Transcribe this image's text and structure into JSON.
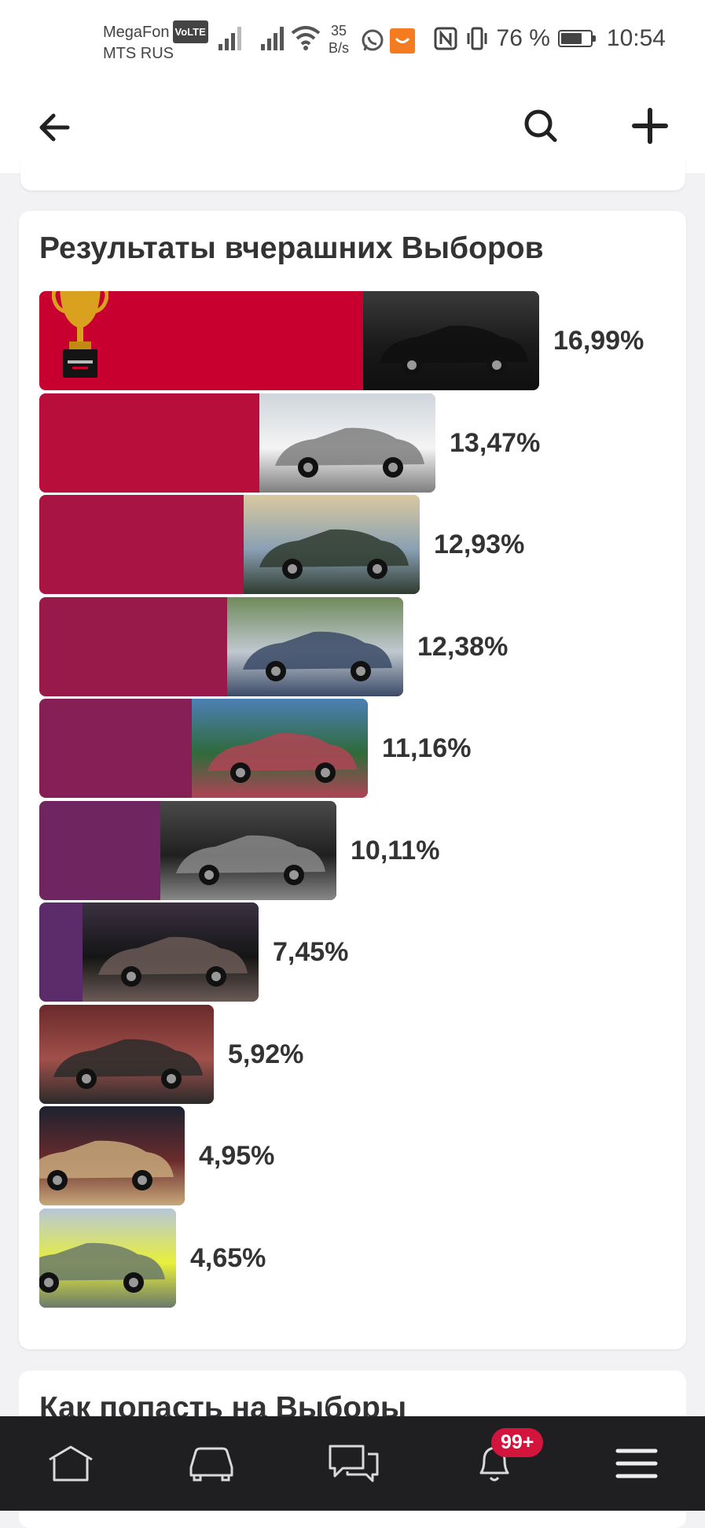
{
  "status_bar": {
    "carrier_1": "MegaFon",
    "volte": "VoLTE",
    "carrier_2": "MTS RUS",
    "net_speed_value": "35",
    "net_speed_unit": "B/s",
    "battery_percent": "76 %",
    "battery_level": 0.76,
    "time": "10:54"
  },
  "app_bar": {
    "back_icon": "arrow-left-icon",
    "search_icon": "search-icon",
    "add_icon": "plus-icon"
  },
  "results_card": {
    "title": "Результаты вчерашних Выборов",
    "chart_data": {
      "type": "bar",
      "orientation": "horizontal",
      "categories": [
        "",
        "",
        "",
        "",
        "",
        "",
        "",
        "",
        "",
        ""
      ],
      "values": [
        16.99,
        13.47,
        12.93,
        12.38,
        11.16,
        10.11,
        7.45,
        5.92,
        4.95,
        4.65
      ],
      "value_labels": [
        "16,99%",
        "13,47%",
        "12,93%",
        "12,38%",
        "11,16%",
        "10,11%",
        "7,45%",
        "5,92%",
        "4,95%",
        "4,65%"
      ],
      "bar_colors": [
        "#c8002f",
        "#b80e3c",
        "#a81443",
        "#981a4b",
        "#861f55",
        "#6f2560",
        "#5b2b6a",
        "#453470",
        "#333f86",
        "#224b94"
      ],
      "title": "Результаты вчерашних Выборов",
      "xlabel": "",
      "ylabel": "",
      "legend": "none",
      "grid": false
    }
  },
  "next_card": {
    "title": "Как попасть на Выборы"
  },
  "bottom_nav": {
    "items": [
      "home-icon",
      "car-icon",
      "chat-icon",
      "bell-icon",
      "menu-icon"
    ],
    "notifications_badge": "99+"
  }
}
